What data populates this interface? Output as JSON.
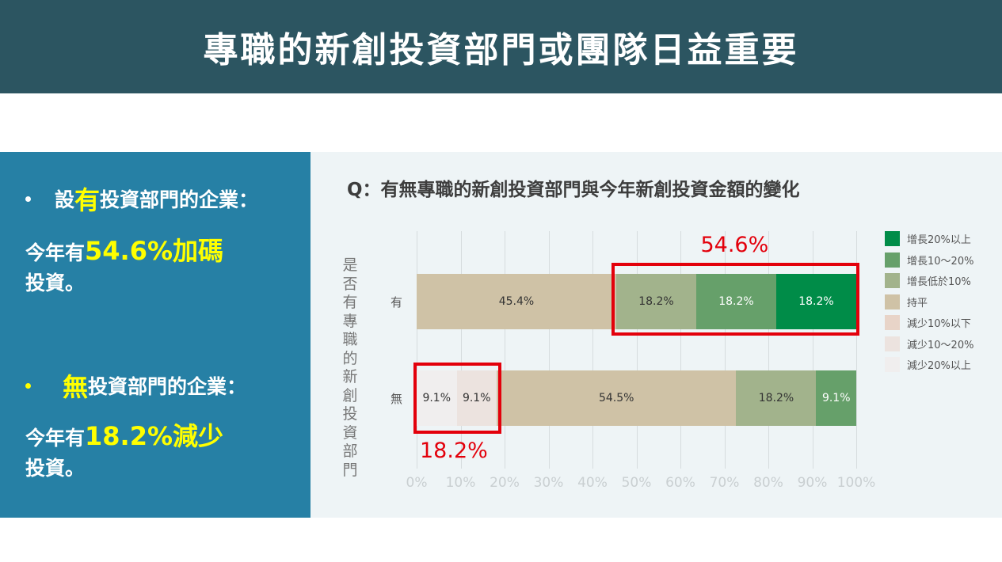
{
  "title": "專職的新創投資部門或團隊日益重要",
  "left": {
    "b1": {
      "pre": "設",
      "hl": "有",
      "post": "投資部門的企業："
    },
    "l1": {
      "pre": "今年有",
      "hl": "54.6%加碼",
      "post": "投資。"
    },
    "b2": {
      "hl": "無",
      "post": "投資部門的企業："
    },
    "l2": {
      "pre": "今年有",
      "hl": "18.2%減少",
      "post": "投資。"
    }
  },
  "chart_data": {
    "type": "bar",
    "orientation": "horizontal-stacked",
    "title": "Q：有無專職的新創投資部門與今年新創投資金額的變化",
    "ylabel": "是否有專職的新創投資部門",
    "categories": [
      "有",
      "無"
    ],
    "series": [
      {
        "name": "減少20%以上",
        "color": "#f0eeee",
        "values": [
          0,
          9.1
        ],
        "labels": [
          "",
          "9.1%"
        ]
      },
      {
        "name": "減少10～20%",
        "color": "#ece3df",
        "values": [
          0,
          9.1
        ],
        "labels": [
          "",
          "9.1%"
        ]
      },
      {
        "name": "減少10%以下",
        "color": "#e8d4c8",
        "values": [
          0,
          0
        ],
        "labels": [
          "",
          ""
        ]
      },
      {
        "name": "持平",
        "color": "#cfc2a6",
        "values": [
          45.4,
          54.5
        ],
        "labels": [
          "45.4%",
          "54.5%"
        ]
      },
      {
        "name": "增長低於10%",
        "color": "#a2b38c",
        "values": [
          18.2,
          18.2
        ],
        "labels": [
          "18.2%",
          "18.2%"
        ]
      },
      {
        "name": "增長10～20%",
        "color": "#66a06a",
        "values": [
          18.2,
          9.1
        ],
        "labels": [
          "18.2%",
          "9.1%"
        ]
      },
      {
        "name": "增長20%以上",
        "color": "#008c48",
        "values": [
          18.2,
          0
        ],
        "labels": [
          "18.2%",
          ""
        ]
      }
    ],
    "legend_order": [
      "增長20%以上",
      "增長10～20%",
      "增長低於10%",
      "持平",
      "減少10%以下",
      "減少10～20%",
      "減少20%以上"
    ],
    "xlim": [
      0,
      100
    ],
    "xticks": [
      "0%",
      "10%",
      "20%",
      "30%",
      "40%",
      "50%",
      "60%",
      "70%",
      "80%",
      "90%",
      "100%"
    ],
    "grid": true,
    "legend_position": "right",
    "annotations": [
      {
        "text": "54.6%",
        "category": "有",
        "range": [
          45.4,
          100
        ]
      },
      {
        "text": "18.2%",
        "category": "無",
        "range": [
          0,
          18.2
        ]
      }
    ]
  }
}
